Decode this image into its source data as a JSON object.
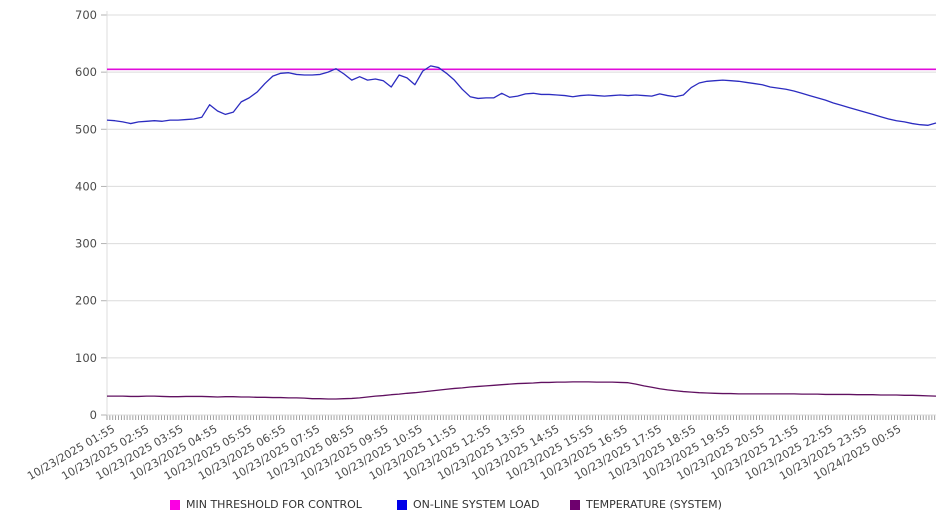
{
  "chart_data": {
    "type": "line",
    "title": "",
    "xlabel": "",
    "ylabel": "",
    "grid": "horizontal-only",
    "legend_position": "bottom",
    "y_axis": {
      "min": 0,
      "max": 700,
      "ticks": [
        0,
        100,
        200,
        300,
        400,
        500,
        600,
        700
      ]
    },
    "x_axis": {
      "start": "10/23/2025 01:40",
      "end": "10/24/2025 01:55",
      "sample_interval_minutes": 13.9,
      "tick_labels": [
        "10/23/2025 01:55",
        "10/23/2025 02:55",
        "10/23/2025 03:55",
        "10/23/2025 04:55",
        "10/23/2025 05:55",
        "10/23/2025 06:55",
        "10/23/2025 07:55",
        "10/23/2025 08:55",
        "10/23/2025 09:55",
        "10/23/2025 10:55",
        "10/23/2025 11:55",
        "10/23/2025 12:55",
        "10/23/2025 13:55",
        "10/23/2025 14:55",
        "10/23/2025 15:55",
        "10/23/2025 16:55",
        "10/23/2025 17:55",
        "10/23/2025 18:55",
        "10/23/2025 19:55",
        "10/23/2025 20:55",
        "10/23/2025 21:55",
        "10/23/2025 22:55",
        "10/23/2025 23:55",
        "10/24/2025 00:55"
      ]
    },
    "series": [
      {
        "name": "MIN THRESHOLD FOR CONTROL",
        "kind": "hline",
        "value": 605,
        "color": "#e00ddb",
        "legend_color": "#fb00e3"
      },
      {
        "name": "ON-LINE SYSTEM LOAD",
        "kind": "line",
        "color": "#2c2cc0",
        "legend_color": "#0000e8",
        "values": [
          516,
          515,
          513,
          510,
          513,
          514,
          515,
          514,
          516,
          516,
          517,
          518,
          521,
          543,
          532,
          526,
          530,
          548,
          555,
          565,
          580,
          593,
          598,
          599,
          596,
          595,
          595,
          596,
          600,
          606,
          597,
          586,
          592,
          586,
          588,
          585,
          574,
          595,
          590,
          578,
          602,
          611,
          608,
          598,
          586,
          570,
          557,
          554,
          555,
          555,
          563,
          556,
          558,
          562,
          563,
          561,
          561,
          560,
          559,
          557,
          559,
          560,
          559,
          558,
          559,
          560,
          559,
          560,
          559,
          558,
          562,
          559,
          557,
          560,
          573,
          581,
          584,
          585,
          586,
          585,
          584,
          582,
          580,
          578,
          574,
          572,
          570,
          567,
          563,
          559,
          555,
          551,
          546,
          542,
          538,
          534,
          530,
          526,
          522,
          518,
          515,
          513,
          510,
          508,
          507,
          511
        ]
      },
      {
        "name": "TEMPERATURE (SYSTEM)",
        "kind": "line",
        "color": "#601060",
        "legend_color": "#6e006e",
        "values": [
          33,
          33,
          33,
          32.5,
          32.5,
          33,
          33,
          32.5,
          32,
          32,
          32.5,
          32.5,
          32.5,
          32,
          31.5,
          32,
          32,
          31.5,
          31.5,
          31,
          31,
          30.5,
          30.5,
          30,
          30,
          29.5,
          28.5,
          28.5,
          28,
          28,
          28.5,
          29,
          30,
          31.5,
          33,
          34,
          35.5,
          36.5,
          38,
          39,
          40.5,
          42,
          43.5,
          45,
          46.5,
          47.5,
          49,
          50,
          51,
          52,
          53,
          54,
          55,
          55.5,
          56,
          57,
          57,
          57.5,
          57.5,
          58,
          58,
          58,
          57.5,
          57.5,
          57.5,
          57,
          56.5,
          54,
          51,
          48.5,
          46,
          44,
          42.5,
          41,
          40,
          39,
          38.5,
          38,
          37.5,
          37.5,
          37,
          37,
          37,
          37,
          37,
          37,
          37,
          37,
          36.5,
          36.5,
          36.5,
          36,
          36,
          36,
          36,
          35.5,
          35.5,
          35.5,
          35,
          35,
          35,
          34.5,
          34.5,
          34,
          33.5,
          33
        ]
      }
    ]
  }
}
